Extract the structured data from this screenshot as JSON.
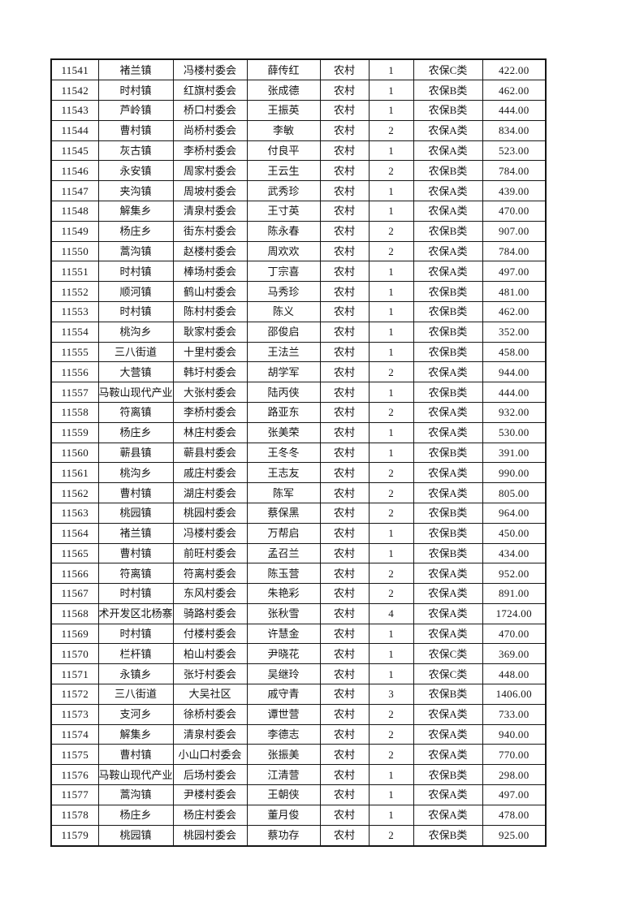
{
  "table": {
    "column_keys": [
      "serial",
      "town",
      "village",
      "person",
      "residence",
      "count",
      "insurance_class",
      "amount"
    ],
    "rows": [
      [
        "11541",
        "褚兰镇",
        "冯楼村委会",
        "薛传红",
        "农村",
        "1",
        "农保C类",
        "422.00"
      ],
      [
        "11542",
        "时村镇",
        "红旗村委会",
        "张成德",
        "农村",
        "1",
        "农保B类",
        "462.00"
      ],
      [
        "11543",
        "芦岭镇",
        "桥口村委会",
        "王振英",
        "农村",
        "1",
        "农保B类",
        "444.00"
      ],
      [
        "11544",
        "曹村镇",
        "尚桥村委会",
        "李敏",
        "农村",
        "2",
        "农保A类",
        "834.00"
      ],
      [
        "11545",
        "灰古镇",
        "李桥村委会",
        "付良平",
        "农村",
        "1",
        "农保A类",
        "523.00"
      ],
      [
        "11546",
        "永安镇",
        "周家村委会",
        "王云生",
        "农村",
        "2",
        "农保B类",
        "784.00"
      ],
      [
        "11547",
        "夹沟镇",
        "周坡村委会",
        "武秀珍",
        "农村",
        "1",
        "农保A类",
        "439.00"
      ],
      [
        "11548",
        "解集乡",
        "清泉村委会",
        "王寸英",
        "农村",
        "1",
        "农保A类",
        "470.00"
      ],
      [
        "11549",
        "杨庄乡",
        "街东村委会",
        "陈永春",
        "农村",
        "2",
        "农保B类",
        "907.00"
      ],
      [
        "11550",
        "蒿沟镇",
        "赵楼村委会",
        "周欢欢",
        "农村",
        "2",
        "农保A类",
        "784.00"
      ],
      [
        "11551",
        "时村镇",
        "棒场村委会",
        "丁宗喜",
        "农村",
        "1",
        "农保A类",
        "497.00"
      ],
      [
        "11552",
        "顺河镇",
        "鹤山村委会",
        "马秀珍",
        "农村",
        "1",
        "农保B类",
        "481.00"
      ],
      [
        "11553",
        "时村镇",
        "陈村村委会",
        "陈义",
        "农村",
        "1",
        "农保B类",
        "462.00"
      ],
      [
        "11554",
        "桃沟乡",
        "耿家村委会",
        "邵俊启",
        "农村",
        "1",
        "农保B类",
        "352.00"
      ],
      [
        "11555",
        "三八街道",
        "十里村委会",
        "王法兰",
        "农村",
        "1",
        "农保B类",
        "458.00"
      ],
      [
        "11556",
        "大营镇",
        "韩圩村委会",
        "胡学军",
        "农村",
        "2",
        "农保A类",
        "944.00"
      ],
      [
        "11557",
        "马鞍山现代产业",
        "大张村委会",
        "陆丙侠",
        "农村",
        "1",
        "农保B类",
        "444.00"
      ],
      [
        "11558",
        "符离镇",
        "李桥村委会",
        "路亚东",
        "农村",
        "2",
        "农保A类",
        "932.00"
      ],
      [
        "11559",
        "杨庄乡",
        "林庄村委会",
        "张美荣",
        "农村",
        "1",
        "农保A类",
        "530.00"
      ],
      [
        "11560",
        "蕲县镇",
        "蕲县村委会",
        "王冬冬",
        "农村",
        "1",
        "农保B类",
        "391.00"
      ],
      [
        "11561",
        "桃沟乡",
        "戚庄村委会",
        "王志友",
        "农村",
        "2",
        "农保A类",
        "990.00"
      ],
      [
        "11562",
        "曹村镇",
        "湖庄村委会",
        "陈军",
        "农村",
        "2",
        "农保A类",
        "805.00"
      ],
      [
        "11563",
        "桃园镇",
        "桃园村委会",
        "蔡保黑",
        "农村",
        "2",
        "农保B类",
        "964.00"
      ],
      [
        "11564",
        "褚兰镇",
        "冯楼村委会",
        "万帮启",
        "农村",
        "1",
        "农保B类",
        "450.00"
      ],
      [
        "11565",
        "曹村镇",
        "前旺村委会",
        "孟召兰",
        "农村",
        "1",
        "农保B类",
        "434.00"
      ],
      [
        "11566",
        "符离镇",
        "符离村委会",
        "陈玉营",
        "农村",
        "2",
        "农保A类",
        "952.00"
      ],
      [
        "11567",
        "时村镇",
        "东风村委会",
        "朱艳彩",
        "农村",
        "2",
        "农保A类",
        "891.00"
      ],
      [
        "11568",
        "术开发区北杨寨",
        "骑路村委会",
        "张秋雪",
        "农村",
        "4",
        "农保A类",
        "1724.00"
      ],
      [
        "11569",
        "时村镇",
        "付楼村委会",
        "许慧金",
        "农村",
        "1",
        "农保A类",
        "470.00"
      ],
      [
        "11570",
        "栏杆镇",
        "柏山村委会",
        "尹晓花",
        "农村",
        "1",
        "农保C类",
        "369.00"
      ],
      [
        "11571",
        "永镇乡",
        "张圩村委会",
        "吴继玲",
        "农村",
        "1",
        "农保C类",
        "448.00"
      ],
      [
        "11572",
        "三八街道",
        "大吴社区",
        "戚守青",
        "农村",
        "3",
        "农保B类",
        "1406.00"
      ],
      [
        "11573",
        "支河乡",
        "徐桥村委会",
        "谭世营",
        "农村",
        "2",
        "农保A类",
        "733.00"
      ],
      [
        "11574",
        "解集乡",
        "清泉村委会",
        "李德志",
        "农村",
        "2",
        "农保A类",
        "940.00"
      ],
      [
        "11575",
        "曹村镇",
        "小山口村委会",
        "张振美",
        "农村",
        "2",
        "农保A类",
        "770.00"
      ],
      [
        "11576",
        "马鞍山现代产业",
        "后场村委会",
        "江清营",
        "农村",
        "1",
        "农保B类",
        "298.00"
      ],
      [
        "11577",
        "蒿沟镇",
        "尹楼村委会",
        "王朝侠",
        "农村",
        "1",
        "农保A类",
        "497.00"
      ],
      [
        "11578",
        "杨庄乡",
        "杨庄村委会",
        "董月俊",
        "农村",
        "1",
        "农保A类",
        "478.00"
      ],
      [
        "11579",
        "桃园镇",
        "桃园村委会",
        "蔡功存",
        "农村",
        "2",
        "农保B类",
        "925.00"
      ]
    ],
    "colors": {
      "border": "#161616",
      "text": "#141414",
      "page_background": "#ffffff"
    }
  }
}
